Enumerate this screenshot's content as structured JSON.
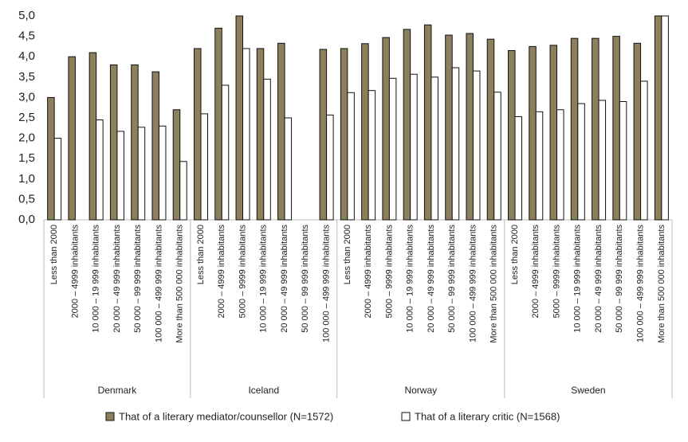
{
  "chart_data": {
    "type": "bar",
    "groups": [
      {
        "label": "Denmark",
        "categories": [
          "Less than 2000",
          "2000 – 4999 inhabitants",
          "10 000 – 19 999 inhabitants",
          "20 000 – 49 999 inhabitants",
          "50 000 – 99 999 inhabitants",
          "100 000 – 499 999 inhabitants",
          "More than 500 000 inhabitants"
        ]
      },
      {
        "label": "Iceland",
        "categories": [
          "Less than 2000",
          "2000 – 4999 inhabitants",
          "5000 – 9999 inhabitants",
          "10 000 – 19 999 inhabitants",
          "20 000 – 49 999 inhabitants",
          "50 000 – 99 999 inhabitants",
          "100 000 – 499 999 inhabitants"
        ]
      },
      {
        "label": "Norway",
        "categories": [
          "Less than 2000",
          "2000 – 4999 inhabitants",
          "5000 – 9999 inhabitants",
          "10 000 – 19 999 inhabitants",
          "20 000 – 49 999 inhabitants",
          "50 000 – 99 999 inhabitants",
          "100 000 – 499 999 inhabitants",
          "More than 500 000 inhabitants"
        ]
      },
      {
        "label": "Sweden",
        "categories": [
          "Less than 2000",
          "2000 – 4999 inhabitants",
          "5000 – 9999 inhabitants",
          "10 000 – 19 999 inhabitants",
          "20 000 – 49 999 inhabitants",
          "50 000 – 99 999 inhabitants",
          "100 000 – 499 999 inhabitants",
          "More than 500 000 inhabitants"
        ]
      }
    ],
    "series": [
      {
        "name": "That of a literary mediator/counsellor (N=1572)",
        "color": "#8c7f5c",
        "values": [
          3.0,
          4.0,
          4.1,
          3.8,
          3.8,
          3.63,
          2.7,
          4.2,
          4.7,
          5.0,
          4.2,
          4.33,
          null,
          4.18,
          4.2,
          4.32,
          4.47,
          4.67,
          4.78,
          4.53,
          4.57,
          4.43,
          4.15,
          4.25,
          4.28,
          4.45,
          4.45,
          4.5,
          4.33,
          5.0
        ]
      },
      {
        "name": "That of a literary critic (N=1568)",
        "color": "#ffffff",
        "values": [
          2.0,
          null,
          2.45,
          2.17,
          2.27,
          2.3,
          1.43,
          2.6,
          3.3,
          4.2,
          3.45,
          2.5,
          null,
          2.57,
          3.12,
          3.17,
          3.47,
          3.57,
          3.5,
          3.73,
          3.65,
          3.13,
          2.53,
          2.65,
          2.7,
          2.85,
          2.93,
          2.9,
          3.4,
          5.0
        ]
      }
    ],
    "ylim": [
      0,
      5
    ],
    "yticks": [
      {
        "value": 0,
        "label": "0,0"
      },
      {
        "value": 0.5,
        "label": "0,5"
      },
      {
        "value": 1,
        "label": "1,0"
      },
      {
        "value": 1.5,
        "label": "1,5"
      },
      {
        "value": 2,
        "label": "2,0"
      },
      {
        "value": 2.5,
        "label": "2,5"
      },
      {
        "value": 3,
        "label": "3,0"
      },
      {
        "value": 3.5,
        "label": "3,5"
      },
      {
        "value": 4,
        "label": "4,0"
      },
      {
        "value": 4.5,
        "label": "4,5"
      },
      {
        "value": 5,
        "label": "5,0"
      }
    ],
    "grid": false,
    "legend": "bottom"
  }
}
